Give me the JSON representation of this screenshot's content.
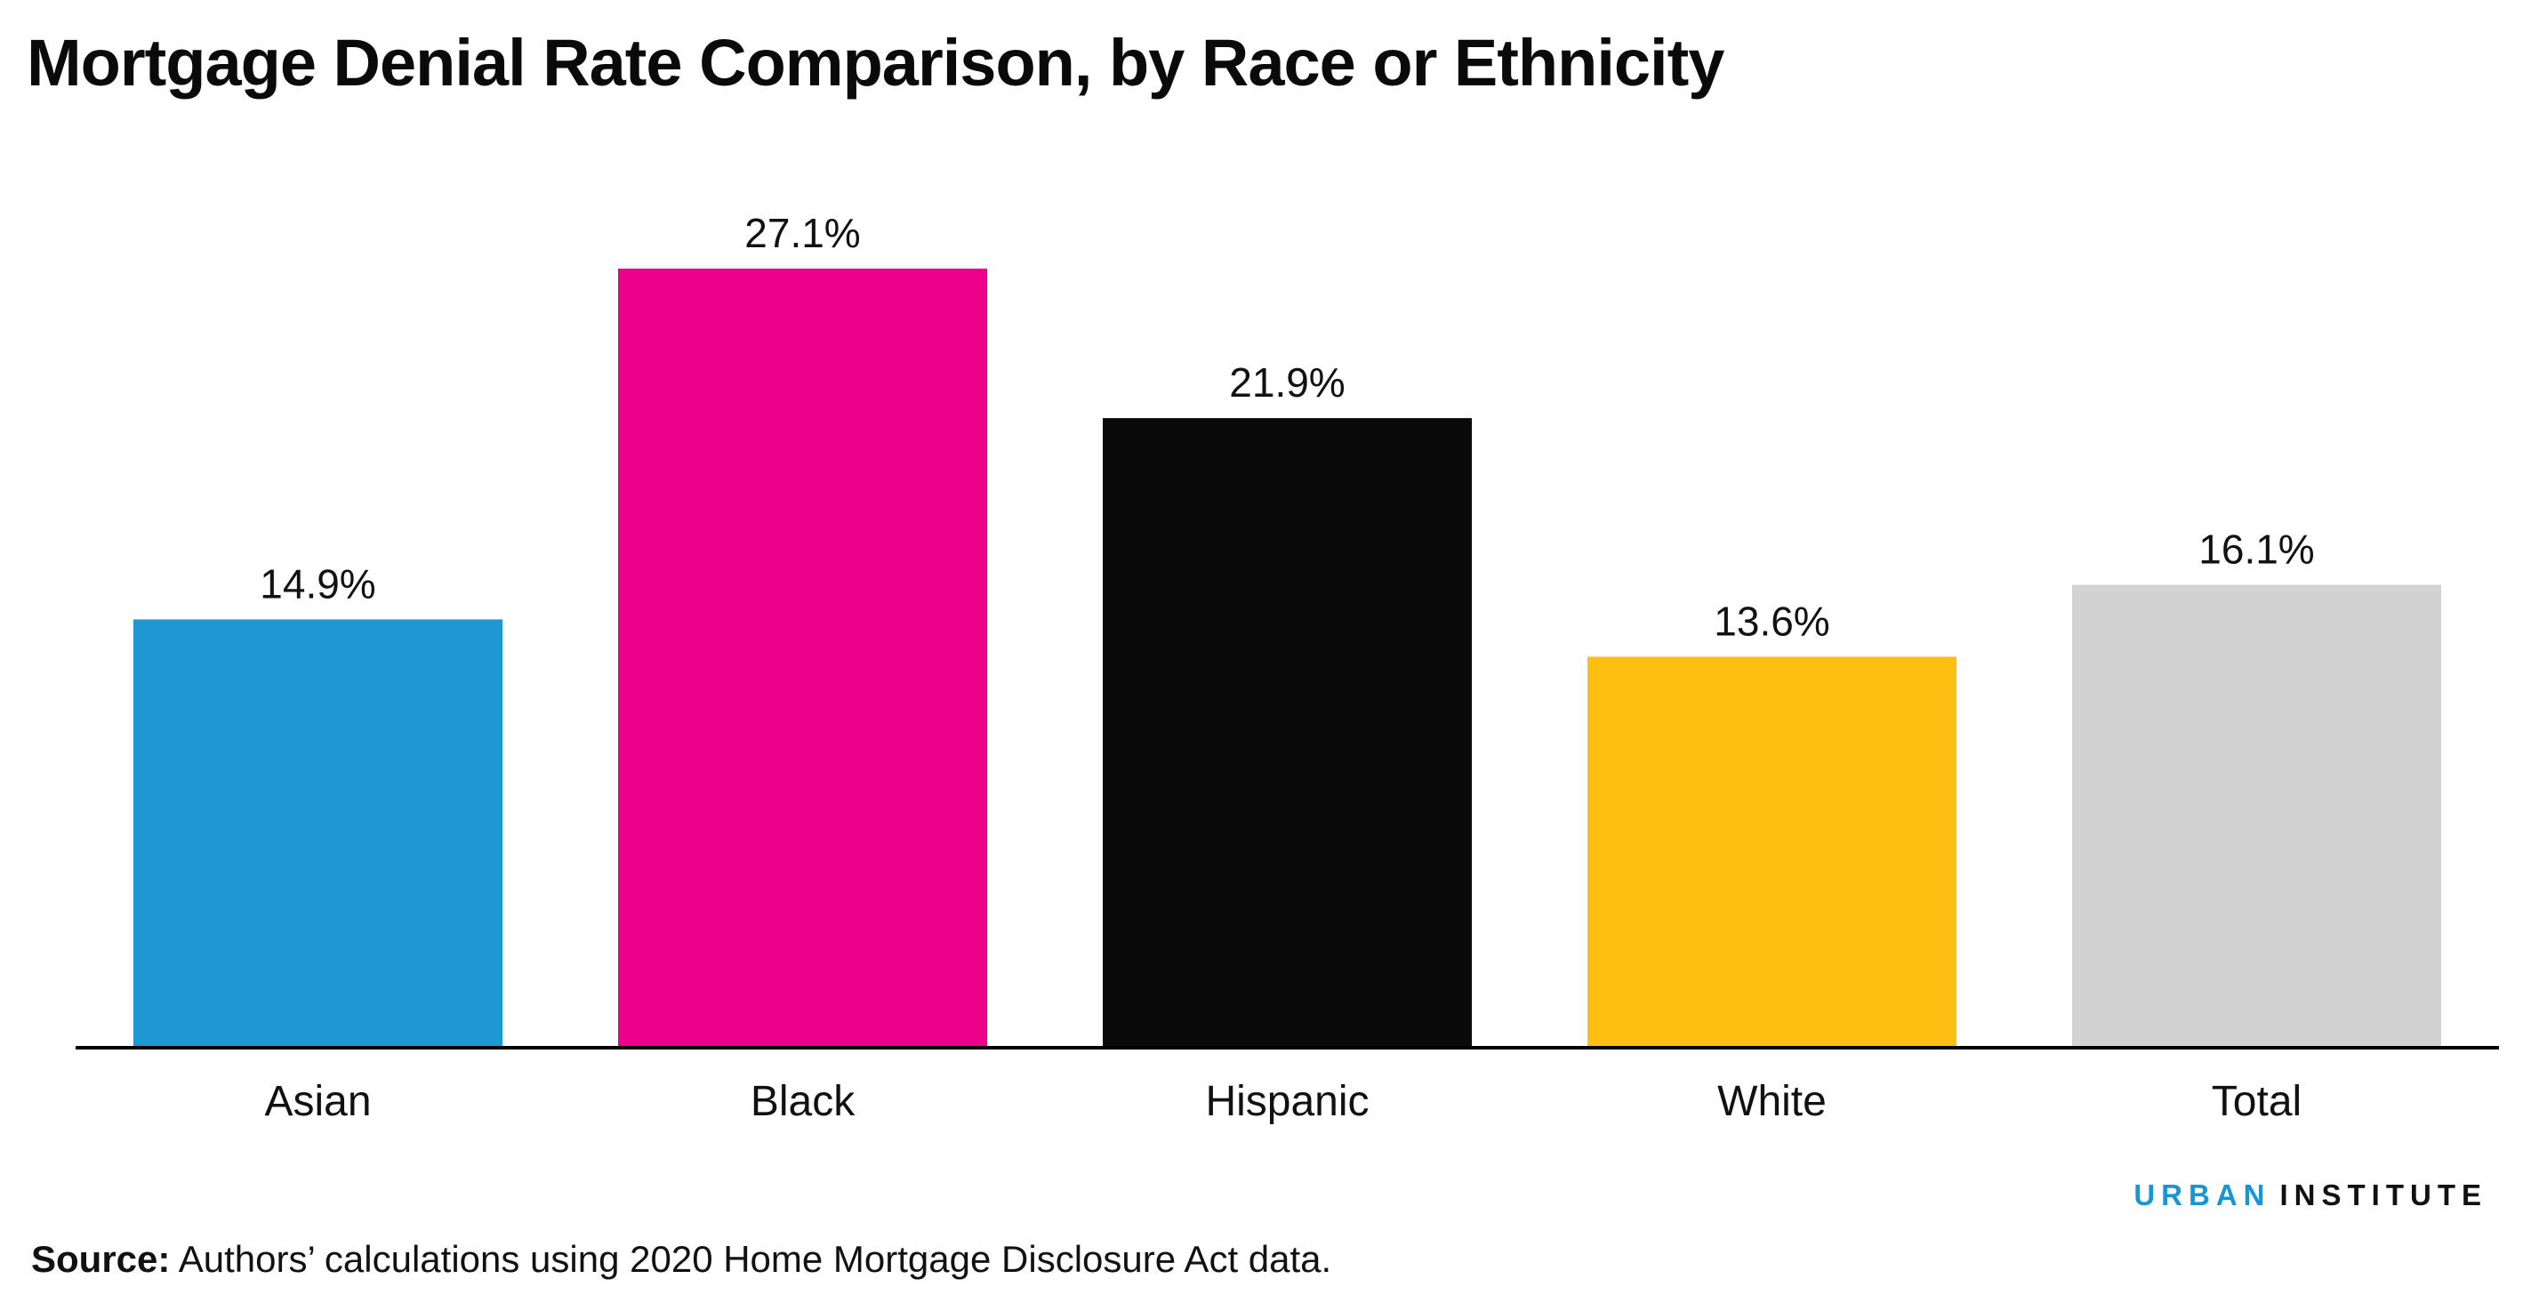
{
  "title": "Mortgage Denial Rate Comparison, by Race or Ethnicity",
  "brand": {
    "part1": "URBAN",
    "part2": "INSTITUTE",
    "colors": {
      "part1": "#1696d2",
      "part2": "#111111"
    }
  },
  "source": {
    "label": "Source:",
    "text": "Authors’ calculations using 2020 Home Mortgage Disclosure Act data."
  },
  "chart_data": {
    "type": "bar",
    "title": "Mortgage Denial Rate Comparison, by Race or Ethnicity",
    "xlabel": "",
    "ylabel": "",
    "categories": [
      "Asian",
      "Black",
      "Hispanic",
      "White",
      "Total"
    ],
    "values": [
      14.9,
      27.1,
      21.9,
      13.6,
      16.1
    ],
    "value_labels": [
      "14.9%",
      "27.1%",
      "21.9%",
      "13.6%",
      "16.1%"
    ],
    "colors": [
      "#1f97d2",
      "#ec008b",
      "#0a0a0a",
      "#fdbf11",
      "#d2d2d2"
    ],
    "ylim": [
      0,
      27.1
    ],
    "grid": false,
    "legend": "none",
    "axis_color": "#000000"
  }
}
